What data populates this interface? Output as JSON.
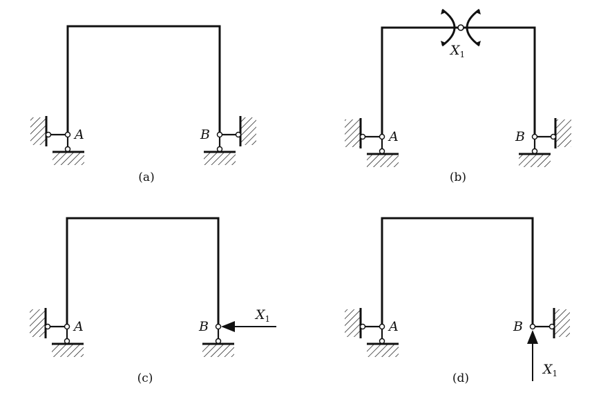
{
  "panels": [
    {
      "caption": "(a)",
      "left_label": "A",
      "right_label": "B"
    },
    {
      "caption": "(b)",
      "left_label": "A",
      "right_label": "B",
      "unknown": "X",
      "unknown_sub": "1"
    },
    {
      "caption": "(c)",
      "left_label": "A",
      "right_label": "B",
      "unknown": "X",
      "unknown_sub": "1"
    },
    {
      "caption": "(d)",
      "left_label": "A",
      "right_label": "B",
      "unknown": "X",
      "unknown_sub": "1"
    }
  ],
  "colors": {
    "line": "#111111",
    "background": "#ffffff"
  }
}
